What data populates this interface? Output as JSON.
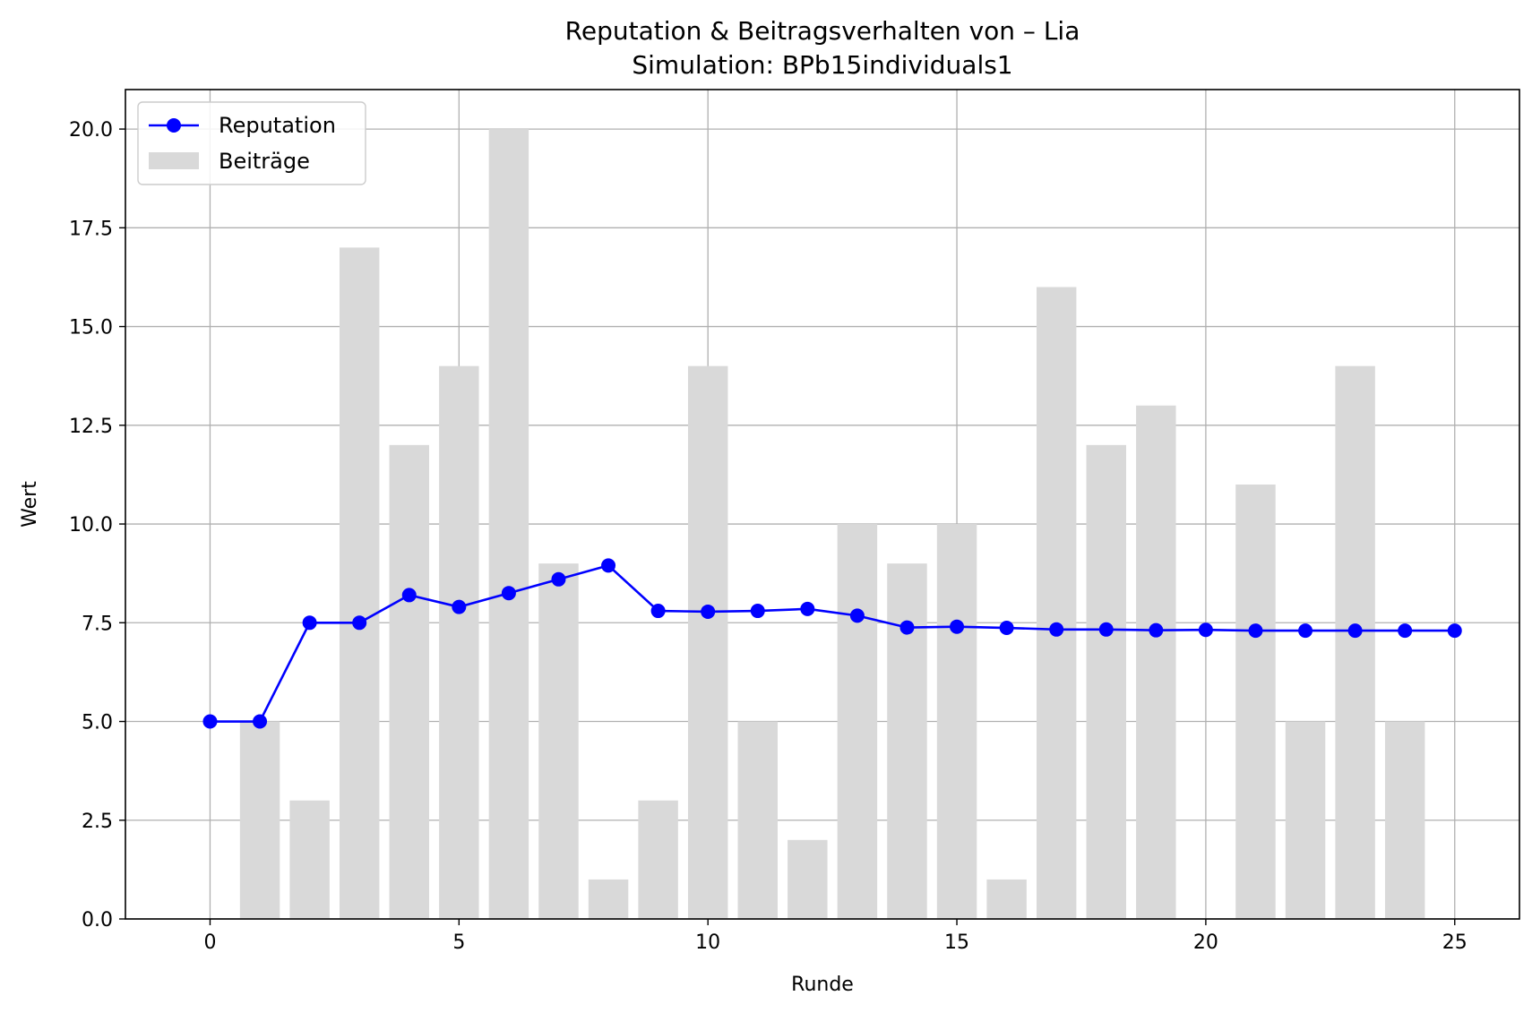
{
  "chart_data": {
    "type": "bar+line",
    "title": "Reputation & Beitragsverhalten von – Lia",
    "subtitle": "Simulation: BPb15individuals1",
    "xlabel": "Runde",
    "ylabel": "Wert",
    "xlim": [
      -1.7,
      26.3
    ],
    "ylim": [
      0,
      21
    ],
    "xticks": [
      0,
      5,
      10,
      15,
      20,
      25
    ],
    "yticks": [
      0.0,
      2.5,
      5.0,
      7.5,
      10.0,
      12.5,
      15.0,
      17.5,
      20.0
    ],
    "xtick_labels": [
      "0",
      "5",
      "10",
      "15",
      "20",
      "25"
    ],
    "ytick_labels": [
      "0.0",
      "2.5",
      "5.0",
      "7.5",
      "10.0",
      "12.5",
      "15.0",
      "17.5",
      "20.0"
    ],
    "grid": true,
    "legend_position": "upper-left",
    "x": [
      0,
      1,
      2,
      3,
      4,
      5,
      6,
      7,
      8,
      9,
      10,
      11,
      12,
      13,
      14,
      15,
      16,
      17,
      18,
      19,
      20,
      21,
      22,
      23,
      24,
      25
    ],
    "series": [
      {
        "name": "Reputation",
        "kind": "line",
        "marker": "circle",
        "color": "#0000ff",
        "values": [
          5.0,
          5.0,
          7.5,
          7.5,
          8.2,
          7.9,
          8.25,
          8.6,
          8.95,
          7.8,
          7.78,
          7.8,
          7.85,
          7.68,
          7.38,
          7.4,
          7.37,
          7.33,
          7.33,
          7.31,
          7.32,
          7.3,
          7.3,
          7.3,
          7.3,
          7.3
        ]
      },
      {
        "name": "Beiträge",
        "kind": "bar",
        "color": "#d9d9d9",
        "values": [
          0,
          5,
          3,
          17,
          12,
          14,
          20,
          9,
          1,
          3,
          14,
          5,
          2,
          10,
          9,
          10,
          1,
          16,
          12,
          13,
          0,
          11,
          5,
          14,
          5,
          0
        ]
      }
    ]
  }
}
